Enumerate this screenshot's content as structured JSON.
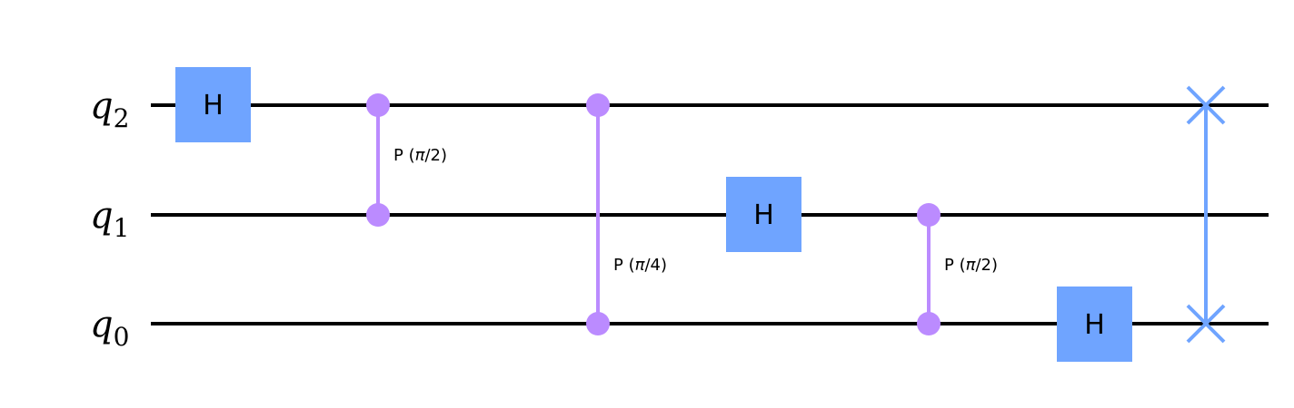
{
  "qubits": [
    {
      "id": "q2",
      "letter": "q",
      "index": "2"
    },
    {
      "id": "q1",
      "letter": "q",
      "index": "1"
    },
    {
      "id": "q0",
      "letter": "q",
      "index": "0"
    }
  ],
  "colors": {
    "wire": "#000000",
    "hadamard": "#6fa4ff",
    "phase": "#bb8bff",
    "swap": "#6fa4ff"
  },
  "gates": [
    {
      "type": "h",
      "label": "H",
      "qubit": "q2",
      "step": 0
    },
    {
      "type": "cp",
      "qubits": [
        "q2",
        "q1"
      ],
      "step": 1,
      "param_prefix": "P (",
      "param_symbol": "π",
      "param_suffix": "/2)"
    },
    {
      "type": "cp",
      "qubits": [
        "q2",
        "q0"
      ],
      "step": 2,
      "param_prefix": "P (",
      "param_symbol": "π",
      "param_suffix": "/4)"
    },
    {
      "type": "h",
      "label": "H",
      "qubit": "q1",
      "step": 3
    },
    {
      "type": "cp",
      "qubits": [
        "q1",
        "q0"
      ],
      "step": 4,
      "param_prefix": "P (",
      "param_symbol": "π",
      "param_suffix": "/2)"
    },
    {
      "type": "h",
      "label": "H",
      "qubit": "q0",
      "step": 5
    },
    {
      "type": "swap",
      "qubits": [
        "q2",
        "q0"
      ],
      "step": 6
    }
  ]
}
